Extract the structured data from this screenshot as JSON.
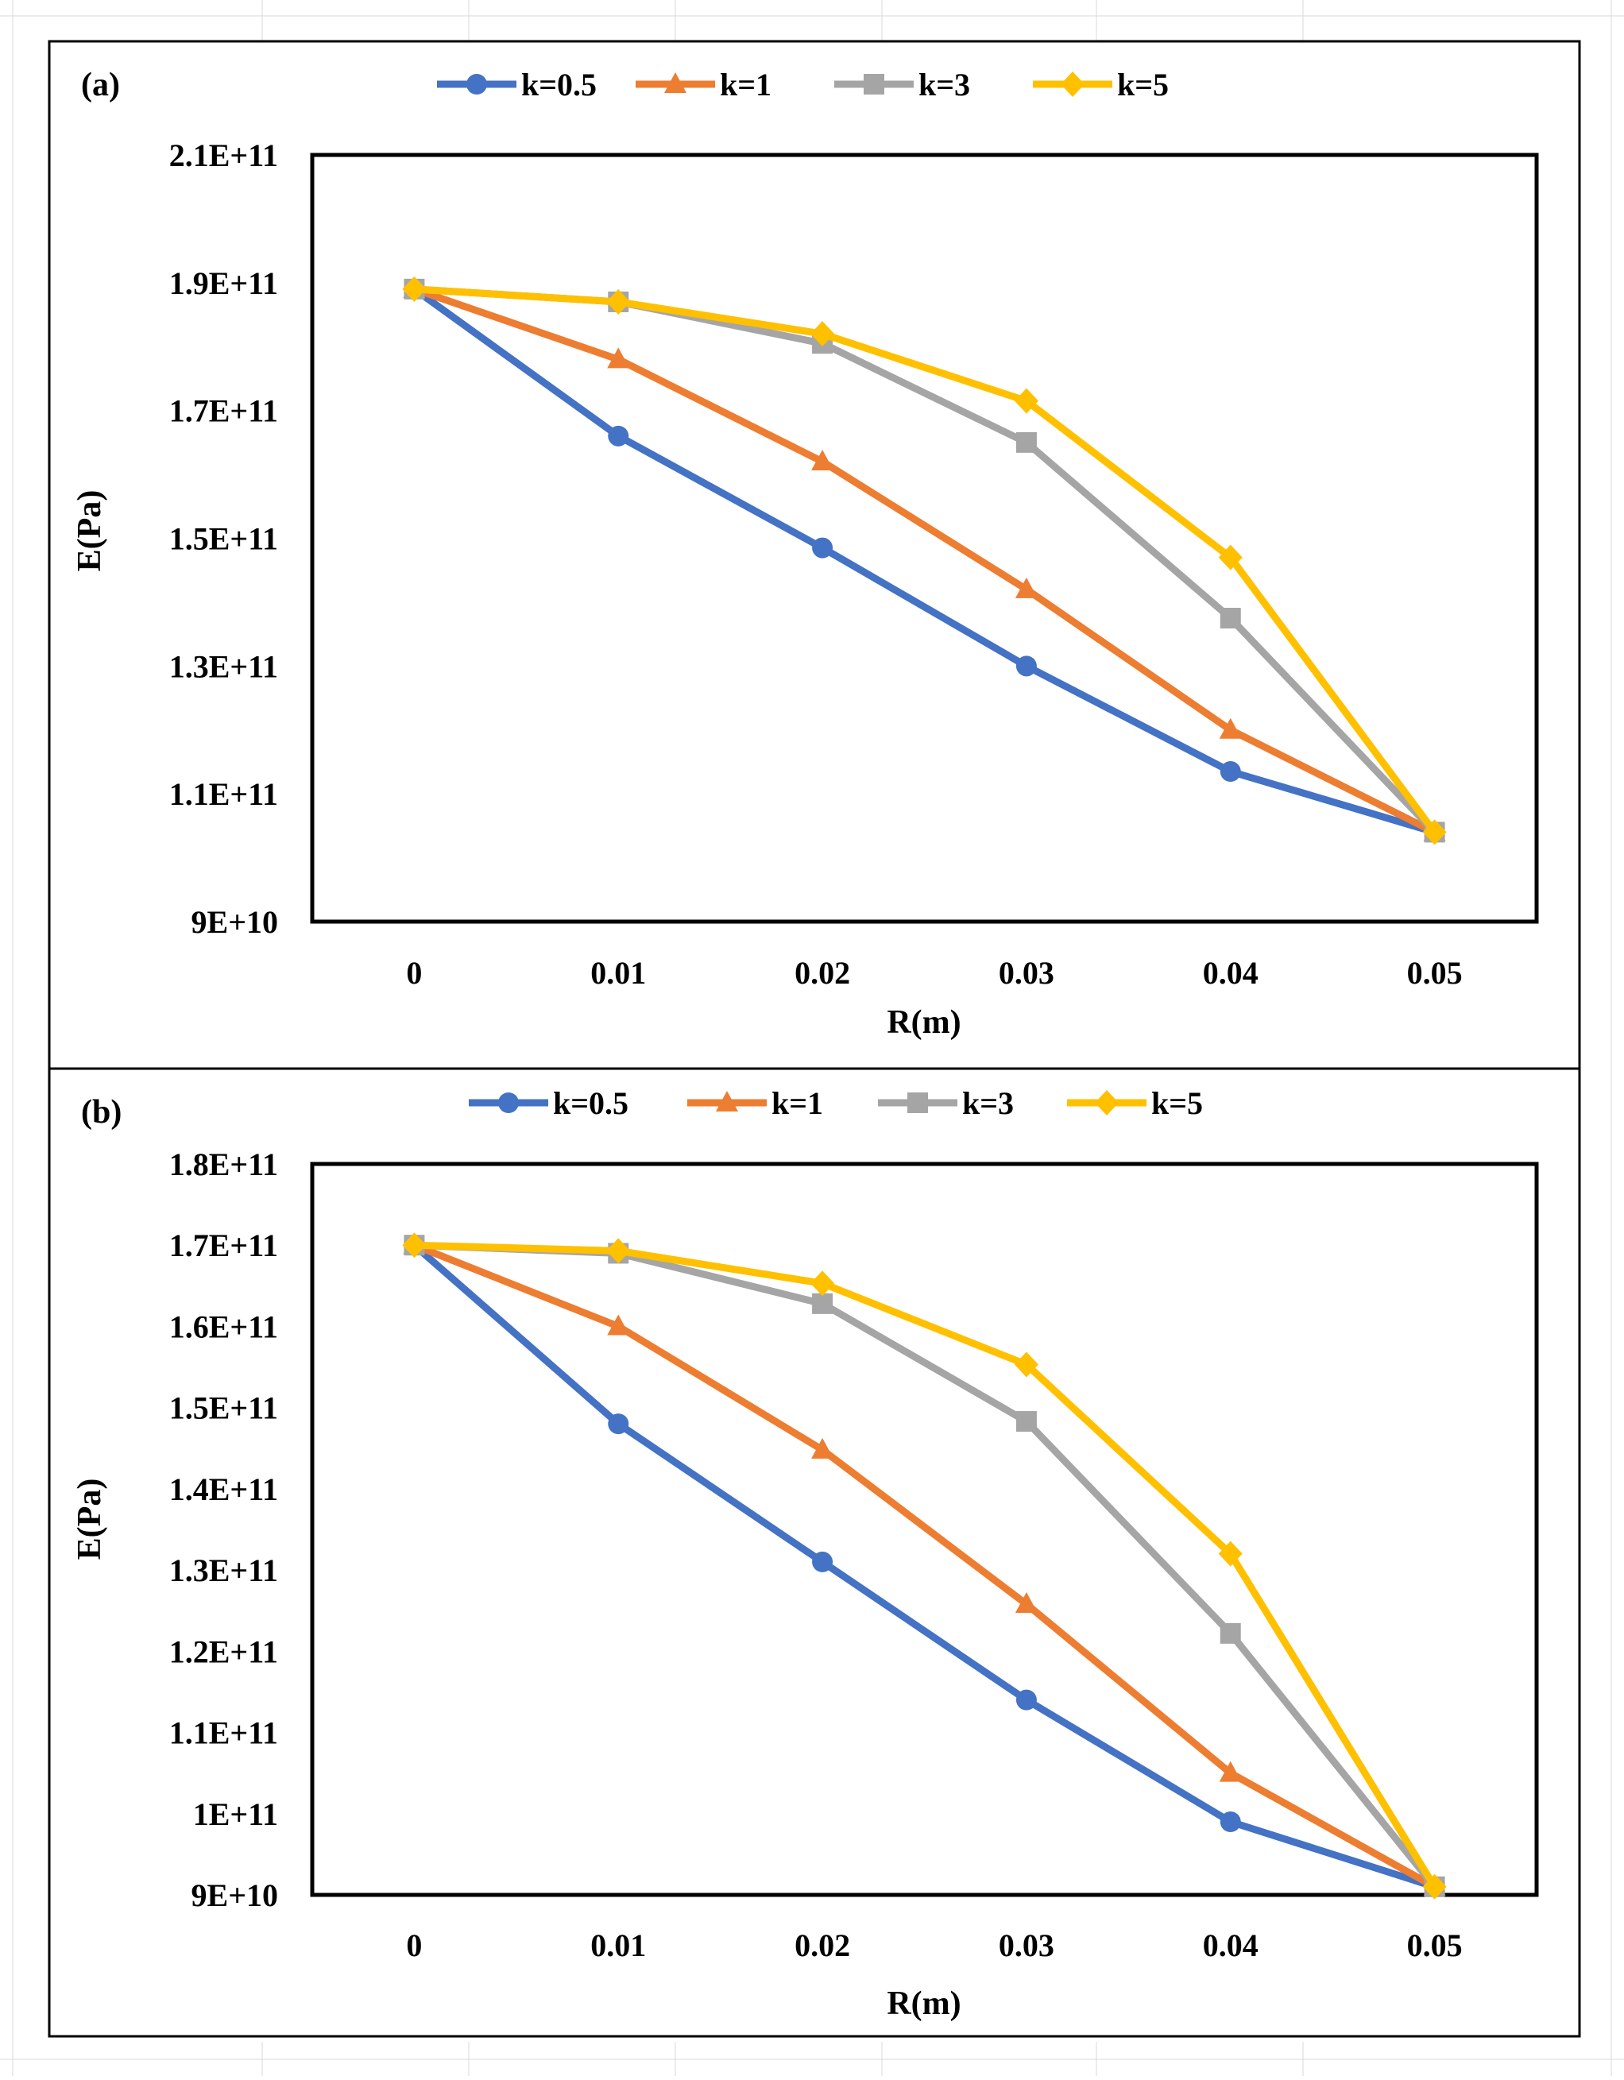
{
  "chart_data": [
    {
      "type": "line",
      "panel_label": "(a)",
      "xlabel": "R(m)",
      "ylabel": "E(Pa)",
      "categories": [
        "0",
        "0.01",
        "0.02",
        "0.03",
        "0.04",
        "0.05"
      ],
      "ylim": [
        90000000000,
        210000000000
      ],
      "yticks": [
        90000000000,
        110000000000,
        130000000000,
        150000000000,
        170000000000,
        190000000000,
        210000000000
      ],
      "ytick_labels": [
        "9E+10",
        "1.1E+11",
        "1.3E+11",
        "1.5E+11",
        "1.7E+11",
        "1.9E+11",
        "2.1E+11"
      ],
      "legend_position": "top",
      "series": [
        {
          "name": "k=0.5",
          "color": "#4472C4",
          "marker": "circle",
          "values": [
            189000000000,
            166000000000,
            148500000000,
            130000000000,
            113500000000,
            104000000000
          ]
        },
        {
          "name": "k=1",
          "color": "#ED7D31",
          "marker": "triangle",
          "values": [
            189000000000,
            178000000000,
            162000000000,
            142000000000,
            120000000000,
            104000000000
          ]
        },
        {
          "name": "k=3",
          "color": "#A5A5A5",
          "marker": "square",
          "values": [
            189000000000,
            187000000000,
            180500000000,
            165000000000,
            137500000000,
            104000000000
          ]
        },
        {
          "name": "k=5",
          "color": "#FFC000",
          "marker": "diamond",
          "values": [
            189000000000,
            187000000000,
            182000000000,
            171500000000,
            147000000000,
            104000000000
          ]
        }
      ]
    },
    {
      "type": "line",
      "panel_label": "(b)",
      "xlabel": "R(m)",
      "ylabel": "E(Pa)",
      "categories": [
        "0",
        "0.01",
        "0.02",
        "0.03",
        "0.04",
        "0.05"
      ],
      "ylim": [
        90000000000,
        180000000000
      ],
      "yticks": [
        90000000000,
        100000000000,
        110000000000,
        120000000000,
        130000000000,
        140000000000,
        150000000000,
        160000000000,
        170000000000,
        180000000000
      ],
      "ytick_labels": [
        "9E+10",
        "1E+11",
        "1.1E+11",
        "1.2E+11",
        "1.3E+11",
        "1.4E+11",
        "1.5E+11",
        "1.6E+11",
        "1.7E+11",
        "1.8E+11"
      ],
      "legend_position": "top",
      "series": [
        {
          "name": "k=0.5",
          "color": "#4472C4",
          "marker": "circle",
          "values": [
            170000000000,
            148000000000,
            131000000000,
            114000000000,
            99000000000,
            91000000000
          ]
        },
        {
          "name": "k=1",
          "color": "#ED7D31",
          "marker": "triangle",
          "values": [
            170000000000,
            160000000000,
            144800000000,
            125800000000,
            105000000000,
            91000000000
          ]
        },
        {
          "name": "k=3",
          "color": "#A5A5A5",
          "marker": "square",
          "values": [
            170000000000,
            169000000000,
            162800000000,
            148300000000,
            122200000000,
            91000000000
          ]
        },
        {
          "name": "k=5",
          "color": "#FFC000",
          "marker": "diamond",
          "values": [
            170000000000,
            169300000000,
            165300000000,
            155300000000,
            132000000000,
            91000000000
          ]
        }
      ]
    }
  ]
}
